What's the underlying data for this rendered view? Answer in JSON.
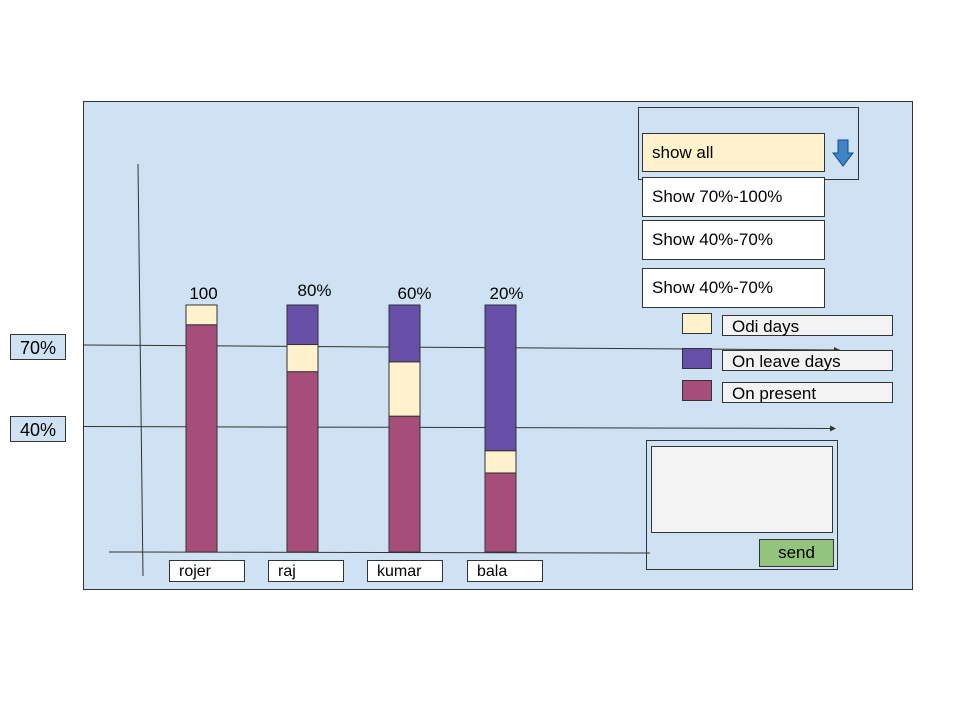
{
  "chart_data": {
    "type": "bar",
    "stacked": true,
    "categories": [
      "rojer",
      "raj",
      "kumar",
      "bala"
    ],
    "bar_labels": [
      "100",
      "80%",
      "60%",
      "20%"
    ],
    "ylim": [
      0,
      100
    ],
    "series": [
      {
        "name": "On present",
        "values": [
          92,
          73,
          55,
          32
        ]
      },
      {
        "name": "Odi days",
        "values": [
          8,
          11,
          22,
          9
        ]
      },
      {
        "name": "On leave days",
        "values": [
          0,
          16,
          23,
          59
        ]
      }
    ],
    "reference_lines": [
      {
        "label": "70%",
        "value": 83
      },
      {
        "label": "40%",
        "value": 50
      }
    ],
    "legend_position": "right"
  },
  "colors": {
    "present": "#a64d79",
    "odi": "#fff2cc",
    "leave": "#674ea7",
    "panel": "#cfe2f3",
    "selected": "#fff2cc",
    "send": "#93c47d"
  },
  "filter": {
    "selected": "show all",
    "options": [
      "Show 70%-100%",
      "Show 40%-70%",
      "Show 40%-70%"
    ]
  },
  "legend": [
    {
      "label": "Odi days",
      "color": "#fff2cc"
    },
    {
      "label": "On leave days",
      "color": "#674ea7"
    },
    {
      "label": "On present",
      "color": "#a64d79"
    }
  ],
  "comment": {
    "value": "",
    "send_label": "send"
  }
}
